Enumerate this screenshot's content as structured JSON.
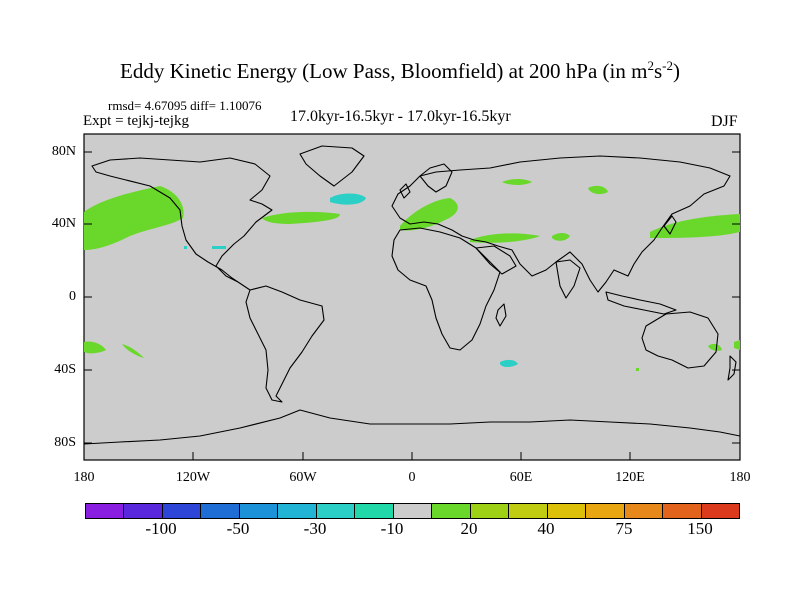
{
  "title": {
    "main": "Eddy Kinetic Energy (Low Pass, Bloomfield) at 200 hPa (in m",
    "sup1": "2",
    "mid": "s",
    "sup2": "-2",
    "end": ")"
  },
  "stats": "rmsd= 4.67095 diff= 1.10076",
  "expt": "Expt = tejkj-tejkg",
  "period": "17.0kyr-16.5kyr - 17.0kyr-16.5kyr",
  "season": "DJF",
  "lat_labels": [
    "80N",
    "40N",
    "0",
    "40S",
    "80S"
  ],
  "lon_labels": [
    "180",
    "120W",
    "60W",
    "0",
    "60E",
    "120E",
    "180"
  ],
  "colorbar": {
    "colors": [
      "#8a1ee0",
      "#5a28dc",
      "#2e46d8",
      "#1f6ed6",
      "#1c92d8",
      "#22b4d4",
      "#2bcfc6",
      "#21d8a8",
      "#cccccc",
      "#6ad82a",
      "#9ed016",
      "#c0cc12",
      "#dcc00a",
      "#e8a610",
      "#e6881a",
      "#e2641c",
      "#dc3a1c"
    ],
    "labels": [
      "-100",
      "-50",
      "-30",
      "-10",
      "20",
      "40",
      "75",
      "150"
    ]
  },
  "map_colors": {
    "ocean": "#cccccc",
    "positive": "#6ad82a",
    "negative": "#2bcfc6"
  }
}
